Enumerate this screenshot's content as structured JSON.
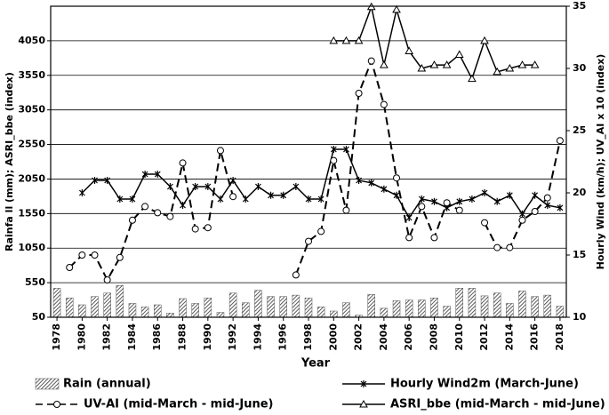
{
  "chart_data": {
    "type": "bar-line",
    "xlabel": "Year",
    "ylabel": "Rainfa ll (mm); ASRI_bbe (index)",
    "y2label": "Hourly Wind (km/h); UV_AI x 10 (index)",
    "x": [
      1978,
      1979,
      1980,
      1981,
      1982,
      1983,
      1984,
      1985,
      1986,
      1987,
      1988,
      1989,
      1990,
      1991,
      1992,
      1993,
      1994,
      1995,
      1996,
      1997,
      1998,
      1999,
      2000,
      2001,
      2002,
      2003,
      2004,
      2005,
      2006,
      2007,
      2008,
      2009,
      2010,
      2011,
      2012,
      2013,
      2014,
      2015,
      2016,
      2017,
      2018
    ],
    "xlim": [
      1977.5,
      2018.5
    ],
    "xticks": [
      1978,
      1980,
      1982,
      1984,
      1986,
      1988,
      1990,
      1992,
      1994,
      1996,
      1998,
      2000,
      2002,
      2004,
      2006,
      2008,
      2010,
      2012,
      2014,
      2016,
      2018
    ],
    "ylim": [
      50,
      4550
    ],
    "yticks": [
      50,
      550,
      1050,
      1550,
      2050,
      2550,
      3050,
      3550,
      4050
    ],
    "y2lim": [
      10,
      35
    ],
    "y2ticks": [
      10,
      15,
      20,
      25,
      30,
      35
    ],
    "grid": true,
    "series": [
      {
        "name": "Rain (annual)",
        "type": "bar",
        "color": "#555555",
        "values": [
          470,
          330,
          230,
          350,
          400,
          510,
          250,
          200,
          230,
          110,
          320,
          250,
          330,
          120,
          400,
          260,
          440,
          350,
          350,
          370,
          330,
          200,
          140,
          260,
          80,
          380,
          180,
          290,
          300,
          300,
          330,
          210,
          470,
          470,
          360,
          400,
          250,
          430,
          350,
          370,
          210
        ]
      },
      {
        "name": "Hourly Wind2m (March-June)",
        "type": "line",
        "axis": "y2",
        "color": "#000000",
        "marker": "star",
        "dash": false,
        "values": [
          null,
          null,
          20.0,
          21.0,
          21.0,
          19.5,
          19.5,
          21.5,
          21.5,
          20.5,
          19.0,
          20.5,
          20.5,
          19.5,
          21.0,
          19.5,
          20.5,
          19.8,
          19.8,
          20.5,
          19.5,
          19.5,
          23.5,
          23.5,
          21.0,
          20.8,
          20.3,
          19.8,
          18.0,
          19.5,
          19.3,
          18.8,
          19.3,
          19.5,
          20.0,
          19.3,
          19.8,
          18.3,
          19.8,
          19.0,
          18.8
        ]
      },
      {
        "name": "UV-AI (mid-March - mid-June)",
        "type": "line",
        "axis": "y2",
        "color": "#000000",
        "marker": "circle",
        "dash": true,
        "values": [
          null,
          14.0,
          15.0,
          15.0,
          13.0,
          14.8,
          17.8,
          18.9,
          18.4,
          18.1,
          22.4,
          17.1,
          17.2,
          23.4,
          19.7,
          null,
          null,
          null,
          null,
          13.4,
          16.1,
          16.9,
          22.6,
          18.6,
          28.0,
          30.6,
          27.1,
          21.2,
          16.4,
          18.9,
          16.4,
          19.2,
          18.6,
          null,
          17.6,
          15.6,
          15.6,
          17.8,
          18.5,
          19.6,
          24.2
        ]
      },
      {
        "name": "ASRI_bbe (mid-March - mid-June)",
        "type": "line",
        "color": "#000000",
        "marker": "triangle",
        "dash": false,
        "values": [
          null,
          null,
          null,
          null,
          null,
          null,
          null,
          null,
          null,
          null,
          null,
          null,
          null,
          null,
          null,
          null,
          null,
          null,
          null,
          null,
          null,
          null,
          4050,
          4050,
          4050,
          4540,
          3700,
          4500,
          3900,
          3650,
          3700,
          3700,
          3850,
          3500,
          4050,
          3600,
          3650,
          3700,
          3700,
          null,
          null
        ]
      }
    ]
  }
}
